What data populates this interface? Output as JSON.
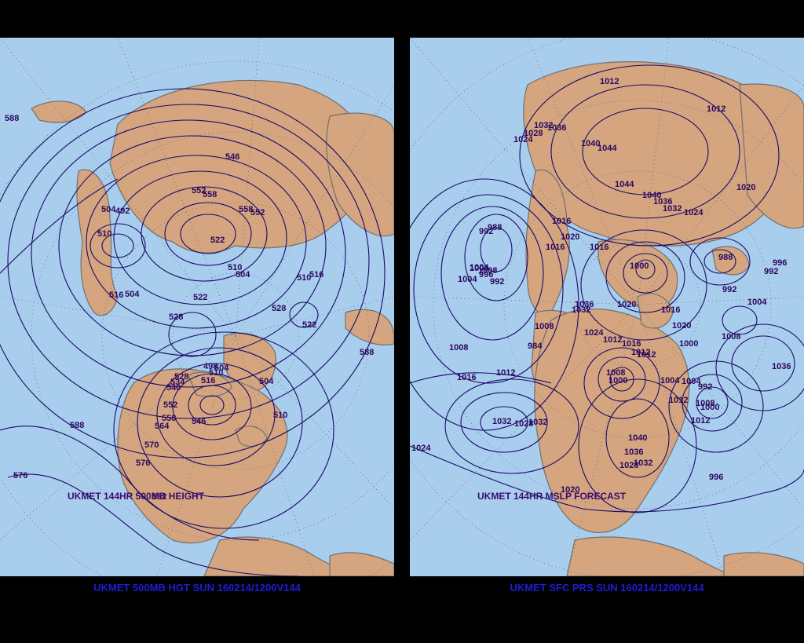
{
  "panels": [
    {
      "id": "left",
      "inner_title": "UKMET 144HR 500MB HEIGHT",
      "caption": "UKMET 500MB HGT SUN 160214/1200V144",
      "colors": {
        "ocean": "#a9cdec",
        "land": "#d4a57e",
        "coast": "#707070",
        "contour": "#1a0a6b",
        "label": "#2a0860"
      },
      "labels": [
        "588",
        "546",
        "552",
        "558",
        "558",
        "552",
        "504",
        "492",
        "510",
        "522",
        "510",
        "504",
        "516",
        "516",
        "510",
        "504",
        "522",
        "528",
        "528",
        "522",
        "588",
        "498",
        "504",
        "510",
        "516",
        "504",
        "528",
        "534",
        "540",
        "552",
        "558",
        "564",
        "546",
        "570",
        "576",
        "588",
        "576",
        "582",
        "510"
      ]
    },
    {
      "id": "right",
      "inner_title": "UKMET 144HR MSLP FORECAST",
      "caption": "UKMET SFC PRS SUN 160214/1200V144",
      "colors": {
        "ocean": "#a9cdec",
        "land": "#d4a57e",
        "coast": "#707070",
        "contour": "#1a0a6b",
        "label": "#2a0860"
      },
      "labels": [
        "1012",
        "1012",
        "1036",
        "1032",
        "1028",
        "1024",
        "1040",
        "1044",
        "1044",
        "1020",
        "1040",
        "1036",
        "1032",
        "1024",
        "1016",
        "1020",
        "1016",
        "1016",
        "1004",
        "1008",
        "992",
        "988",
        "996",
        "992",
        "988",
        "1000",
        "1004",
        "1000",
        "996",
        "992",
        "1004",
        "1036",
        "1032",
        "1020",
        "1024",
        "1016",
        "1012",
        "1008",
        "1012",
        "1016",
        "1020",
        "1000",
        "1012",
        "1008",
        "1004",
        "1008",
        "1000",
        "1036",
        "992",
        "984",
        "1008",
        "1012",
        "1016",
        "1024",
        "1032",
        "1028",
        "1032",
        "1040",
        "1036",
        "1032",
        "1028",
        "1004",
        "1012",
        "1008",
        "1000",
        "992",
        "996",
        "1020",
        "1012",
        "1004"
      ]
    }
  ]
}
